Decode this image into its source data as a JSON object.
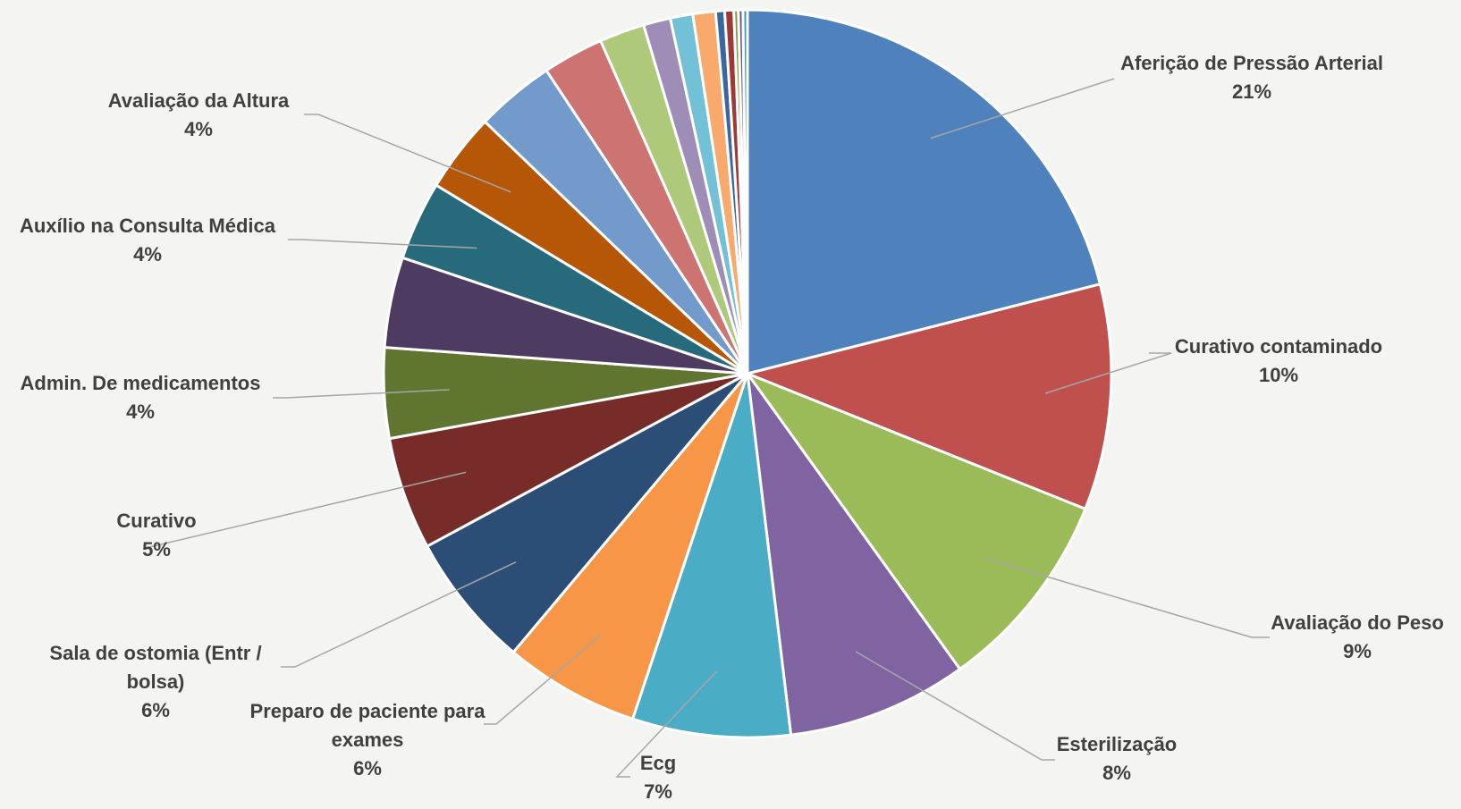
{
  "chart_data": {
    "type": "pie",
    "title": "",
    "slices": [
      {
        "label": "Aferição de Pressão Arterial",
        "value": 21,
        "pct_label": "21%",
        "color": "#4f81bd"
      },
      {
        "label": "Curativo contaminado",
        "value": 10,
        "pct_label": "10%",
        "color": "#c0504d"
      },
      {
        "label": "Avaliação do Peso",
        "value": 9,
        "pct_label": "9%",
        "color": "#9bbb59"
      },
      {
        "label": "Esterilização",
        "value": 8,
        "pct_label": "8%",
        "color": "#8064a2"
      },
      {
        "label": "Ecg",
        "value": 7,
        "pct_label": "7%",
        "color": "#4bacc6"
      },
      {
        "label": "Preparo de paciente para exames",
        "value": 6,
        "pct_label": "6%",
        "color": "#f79646"
      },
      {
        "label": "Sala de ostomia (Entr / bolsa)",
        "value": 6,
        "pct_label": "6%",
        "color": "#2c4d75"
      },
      {
        "label": "Curativo",
        "value": 5,
        "pct_label": "5%",
        "color": "#772c2a"
      },
      {
        "label": "Admin. De medicamentos",
        "value": 4,
        "pct_label": "4%",
        "color": "#5f7530"
      },
      {
        "label": "",
        "value": 4,
        "pct_label": "",
        "color": "#4d3b62"
      },
      {
        "label": "Auxílio na Consulta Médica",
        "value": 3.5,
        "pct_label": "4%",
        "color": "#276a7c"
      },
      {
        "label": "Avaliação da Altura",
        "value": 3.5,
        "pct_label": "4%",
        "color": "#b65708"
      },
      {
        "label": "",
        "value": 3.5,
        "pct_label": "",
        "color": "#729aca"
      },
      {
        "label": "",
        "value": 2.7,
        "pct_label": "",
        "color": "#cd7371"
      },
      {
        "label": "",
        "value": 2.0,
        "pct_label": "",
        "color": "#afc97a"
      },
      {
        "label": "",
        "value": 1.2,
        "pct_label": "",
        "color": "#9d8db7"
      },
      {
        "label": "",
        "value": 1.0,
        "pct_label": "",
        "color": "#72c1d6"
      },
      {
        "label": "",
        "value": 1.0,
        "pct_label": "",
        "color": "#f8a96b"
      },
      {
        "label": "",
        "value": 0.4,
        "pct_label": "",
        "color": "#3a67a0"
      },
      {
        "label": "",
        "value": 0.4,
        "pct_label": "",
        "color": "#a03835"
      },
      {
        "label": "",
        "value": 0.2,
        "pct_label": "",
        "color": "#7e9c3e"
      },
      {
        "label": "",
        "value": 0.2,
        "pct_label": "",
        "color": "#6a548a"
      },
      {
        "label": "",
        "value": 0.2,
        "pct_label": "",
        "color": "#3d9db6"
      }
    ]
  }
}
